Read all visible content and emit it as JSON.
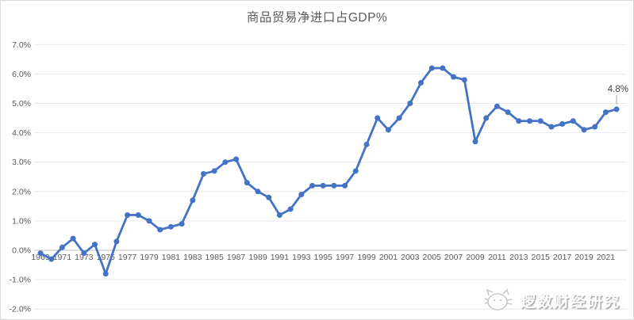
{
  "title": "商品贸易净进口占GDP%",
  "annotation": {
    "last_point_label": "4.8%"
  },
  "watermark": {
    "text": "逻数财经研究",
    "logo": "cat-face-icon"
  },
  "colors": {
    "line": "#4472C4",
    "marker": "#4472C4",
    "gridline": "#E9E9E9",
    "zero_axis": "#C0C0C0",
    "axis_text": "#595959",
    "title_text": "#595959",
    "annotation_text": "#404040",
    "leader_line": "#A6A6A6",
    "watermark_outline": "#C9C9C9"
  },
  "chart_data": {
    "type": "line",
    "title": "商品贸易净进口占GDP%",
    "xlabel": "",
    "ylabel": "",
    "grid": true,
    "legend": false,
    "marker": "circle",
    "ylim": [
      -2.0,
      7.0
    ],
    "x": [
      1969,
      1970,
      1971,
      1972,
      1973,
      1974,
      1975,
      1976,
      1977,
      1978,
      1979,
      1980,
      1981,
      1982,
      1983,
      1984,
      1985,
      1986,
      1987,
      1988,
      1989,
      1990,
      1991,
      1992,
      1993,
      1994,
      1995,
      1996,
      1997,
      1998,
      1999,
      2000,
      2001,
      2002,
      2003,
      2004,
      2005,
      2006,
      2007,
      2008,
      2009,
      2010,
      2011,
      2012,
      2013,
      2014,
      2015,
      2016,
      2017,
      2018,
      2019,
      2020,
      2021,
      2022
    ],
    "series": [
      {
        "name": "商品贸易净进口占GDP%",
        "values": [
          -0.1,
          -0.3,
          0.1,
          0.4,
          -0.1,
          0.2,
          -0.8,
          0.3,
          1.2,
          1.2,
          1.0,
          0.7,
          0.8,
          0.9,
          1.7,
          2.6,
          2.7,
          3.0,
          3.1,
          2.3,
          2.0,
          1.8,
          1.2,
          1.4,
          1.9,
          2.2,
          2.2,
          2.2,
          2.2,
          2.7,
          3.6,
          4.5,
          4.1,
          4.5,
          5.0,
          5.7,
          6.2,
          6.2,
          5.9,
          5.8,
          3.7,
          4.5,
          4.9,
          4.7,
          4.4,
          4.4,
          4.4,
          4.2,
          4.3,
          4.4,
          4.1,
          4.2,
          4.7,
          4.8
        ]
      }
    ],
    "yticks": [
      {
        "label": "7.0%",
        "value": 7
      },
      {
        "label": "6.0%",
        "value": 6
      },
      {
        "label": "5.0%",
        "value": 5
      },
      {
        "label": "4.0%",
        "value": 4
      },
      {
        "label": "3.0%",
        "value": 3
      },
      {
        "label": "2.0%",
        "value": 2
      },
      {
        "label": "1.0%",
        "value": 1
      },
      {
        "label": "0.0%",
        "value": 0
      },
      {
        "label": "-1.0%",
        "value": -1
      },
      {
        "label": "-2.0%",
        "value": -2
      }
    ],
    "xticks": [
      {
        "label": "1969",
        "year": 1969
      },
      {
        "label": "1971",
        "year": 1971
      },
      {
        "label": "1973",
        "year": 1973
      },
      {
        "label": "1975",
        "year": 1975
      },
      {
        "label": "1977",
        "year": 1977
      },
      {
        "label": "1979",
        "year": 1979
      },
      {
        "label": "1981",
        "year": 1981
      },
      {
        "label": "1983",
        "year": 1983
      },
      {
        "label": "1985",
        "year": 1985
      },
      {
        "label": "1987",
        "year": 1987
      },
      {
        "label": "1989",
        "year": 1989
      },
      {
        "label": "1991",
        "year": 1991
      },
      {
        "label": "1993",
        "year": 1993
      },
      {
        "label": "1995",
        "year": 1995
      },
      {
        "label": "1997",
        "year": 1997
      },
      {
        "label": "1999",
        "year": 1999
      },
      {
        "label": "2001",
        "year": 2001
      },
      {
        "label": "2003",
        "year": 2003
      },
      {
        "label": "2005",
        "year": 2005
      },
      {
        "label": "2007",
        "year": 2007
      },
      {
        "label": "2009",
        "year": 2009
      },
      {
        "label": "2011",
        "year": 2011
      },
      {
        "label": "2013",
        "year": 2013
      },
      {
        "label": "2015",
        "year": 2015
      },
      {
        "label": "2017",
        "year": 2017
      },
      {
        "label": "2019",
        "year": 2019
      },
      {
        "label": "2021",
        "year": 2021
      }
    ]
  }
}
